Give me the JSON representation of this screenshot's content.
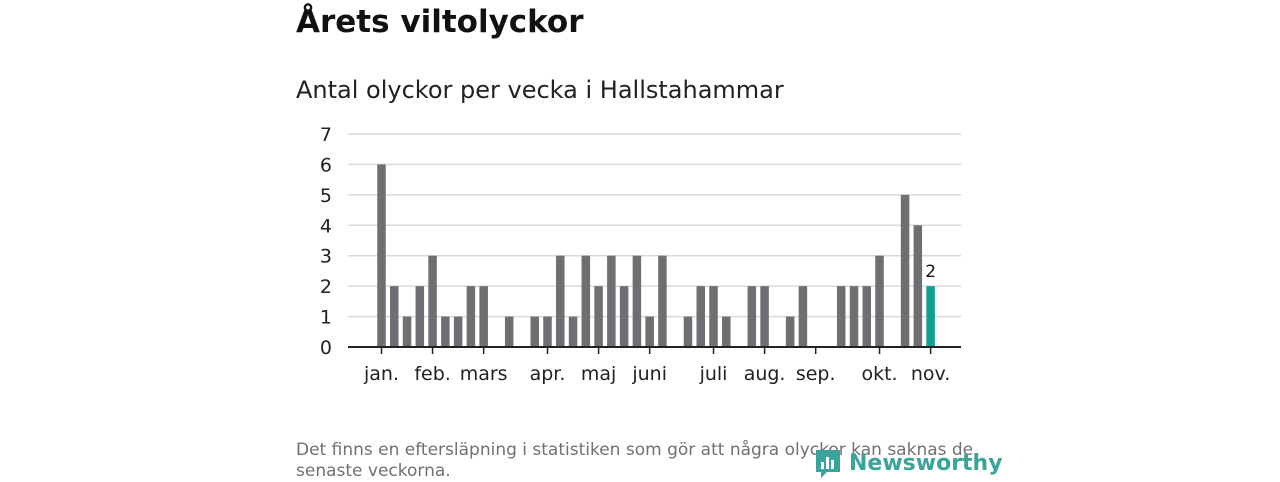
{
  "header": {
    "title": "Årets viltolyckor",
    "subtitle": "Antal olyckor per vecka i Hallstahammar"
  },
  "footnote": "Det finns en eftersläpning i statistiken som gör att några olyckor kan saknas de senaste veckorna.",
  "logo": {
    "text": "Newsworthy",
    "icon": "newsworthy-logo-icon",
    "color": "#3aa39a"
  },
  "colors": {
    "bar": "#6f6e73",
    "highlight": "#0e9e93",
    "grid": "#d9d9d9",
    "axis": "#222222"
  },
  "chart_data": {
    "type": "bar",
    "title": "Antal olyckor per vecka i Hallstahammar",
    "xlabel": "",
    "ylabel": "",
    "ylim": [
      0,
      7
    ],
    "yticks": [
      0,
      1,
      2,
      3,
      4,
      5,
      6,
      7
    ],
    "grid": true,
    "x_unit": "week",
    "weeks": [
      1,
      2,
      3,
      4,
      5,
      6,
      7,
      8,
      9,
      10,
      11,
      12,
      13,
      14,
      15,
      16,
      17,
      18,
      19,
      20,
      21,
      22,
      23,
      24,
      25,
      26,
      27,
      28,
      29,
      30,
      31,
      32,
      33,
      34,
      35,
      36,
      37,
      38,
      39,
      40,
      41,
      42,
      43,
      44
    ],
    "values": [
      6,
      2,
      1,
      2,
      3,
      1,
      1,
      2,
      2,
      0,
      1,
      0,
      1,
      1,
      3,
      1,
      3,
      2,
      3,
      2,
      3,
      1,
      3,
      0,
      1,
      2,
      2,
      1,
      0,
      2,
      2,
      0,
      1,
      2,
      0,
      0,
      2,
      2,
      2,
      3,
      0,
      5,
      4,
      2
    ],
    "highlight_week": 44,
    "highlight_label": "2",
    "month_labels": [
      {
        "label": "jan.",
        "week": 1
      },
      {
        "label": "feb.",
        "week": 5
      },
      {
        "label": "mars",
        "week": 9
      },
      {
        "label": "apr.",
        "week": 14
      },
      {
        "label": "maj",
        "week": 18
      },
      {
        "label": "juni",
        "week": 22
      },
      {
        "label": "juli",
        "week": 27
      },
      {
        "label": "aug.",
        "week": 31
      },
      {
        "label": "sep.",
        "week": 35
      },
      {
        "label": "okt.",
        "week": 40
      },
      {
        "label": "nov.",
        "week": 44
      }
    ]
  }
}
